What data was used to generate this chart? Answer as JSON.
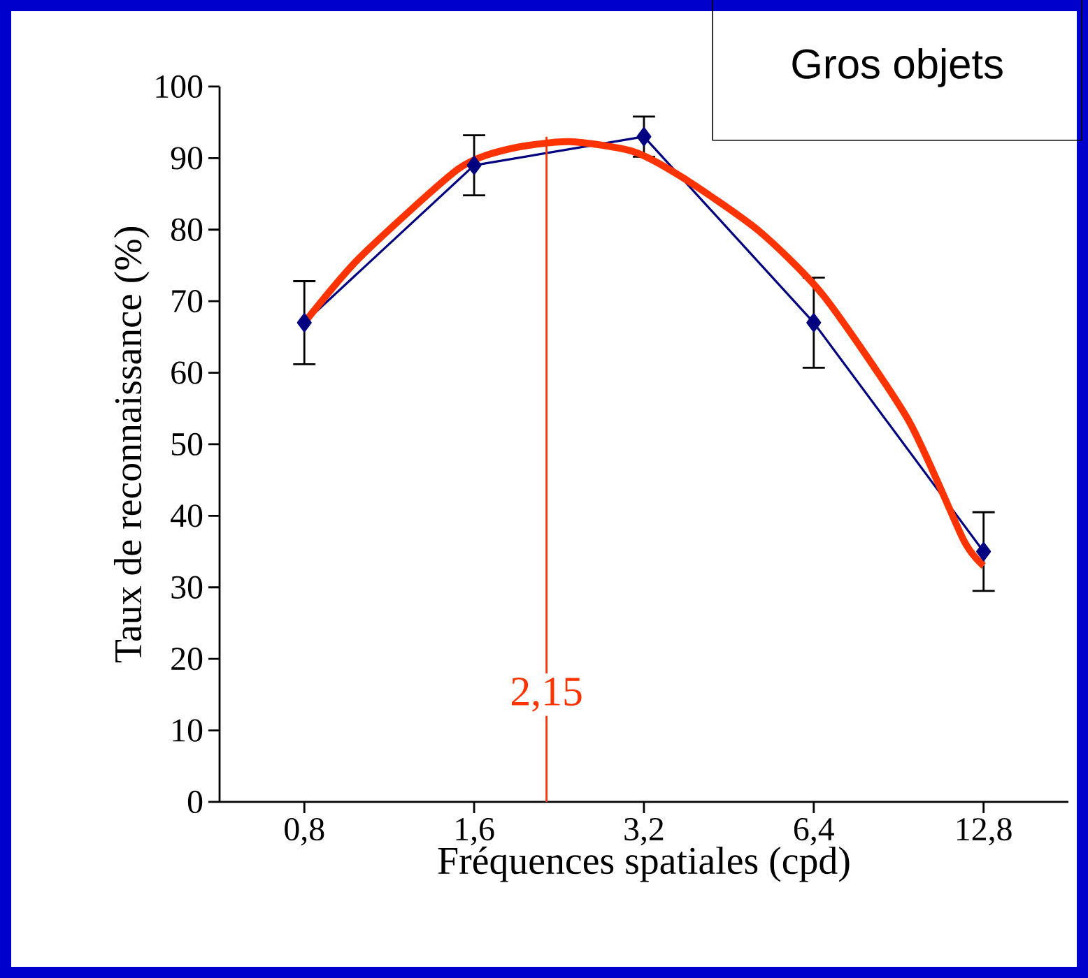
{
  "chart_data": {
    "type": "line",
    "title": "Gros objets",
    "xlabel": "Fréquences spatiales (cpd)",
    "ylabel": "Taux de reconnaissance (%)",
    "log": "x",
    "xlim": [
      0.566,
      18.1
    ],
    "ylim": [
      0,
      100
    ],
    "xticks": [
      {
        "value": 0.8,
        "label": "0,8"
      },
      {
        "value": 1.6,
        "label": "1,6"
      },
      {
        "value": 3.2,
        "label": "3,2"
      },
      {
        "value": 6.4,
        "label": "6,4"
      },
      {
        "value": 12.8,
        "label": "12,8"
      }
    ],
    "yticks": [
      0,
      10,
      20,
      30,
      40,
      50,
      60,
      70,
      80,
      90,
      100
    ],
    "marker": "diamond",
    "line_style": "solid",
    "grid": false,
    "series": [
      {
        "color": "#000080",
        "x": [
          0.8,
          1.6,
          3.2,
          6.4,
          12.8
        ],
        "values": [
          67,
          89,
          93,
          67,
          35
        ],
        "errors": [
          5.8,
          4.2,
          2.8,
          6.3,
          5.5
        ]
      },
      {
        "type": "line",
        "marker": "none",
        "color": "#ff3300",
        "x": [
          0.8,
          1.0,
          1.5,
          1.85,
          2.36,
          3.07,
          3.78,
          5.12,
          6.67,
          9.43,
          11.8,
          12.8
        ],
        "values": [
          67,
          76,
          88.5,
          91.3,
          92.3,
          90.9,
          87.1,
          79.8,
          70.7,
          53.3,
          36.6,
          33
        ]
      }
    ],
    "ref_lines": [
      {
        "axis": "x",
        "value": 2.15,
        "label": "2,15",
        "color": "#ff3300"
      }
    ]
  }
}
